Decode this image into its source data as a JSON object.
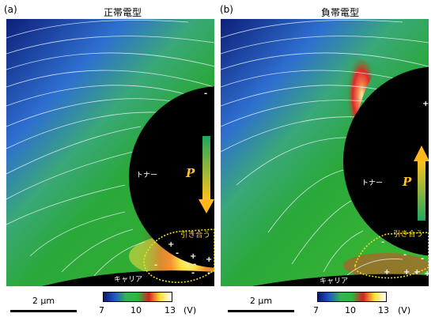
{
  "panels": [
    {
      "letter": "(a)",
      "title": "正帯電型",
      "toner_label": "トナー",
      "carrier_label": "キャリア",
      "attract_label": "引き合う",
      "polarization_symbol": "P",
      "toner_charges": [
        "-",
        "+",
        "+",
        "+",
        "-",
        "-",
        "-"
      ],
      "carrier_charges": [
        "-",
        "-"
      ]
    },
    {
      "letter": "(b)",
      "title": "負帯電型",
      "toner_label": "トナー",
      "carrier_label": "キャリア",
      "attract_label": "引き合う",
      "polarization_symbol": "P",
      "toner_charges": [
        "+",
        "-",
        "-",
        "-",
        "+",
        "+",
        "+",
        "+"
      ],
      "carrier_charges": []
    }
  ],
  "scale_bar": {
    "label": "2 μm"
  },
  "colorbar": {
    "ticks": [
      "7",
      "10",
      "13"
    ],
    "unit": "(V)",
    "colors": [
      "#0a1a70",
      "#1f58c8",
      "#36b450",
      "#2bb83c",
      "#d8201e",
      "#ffe23a",
      "#ffffff"
    ]
  }
}
